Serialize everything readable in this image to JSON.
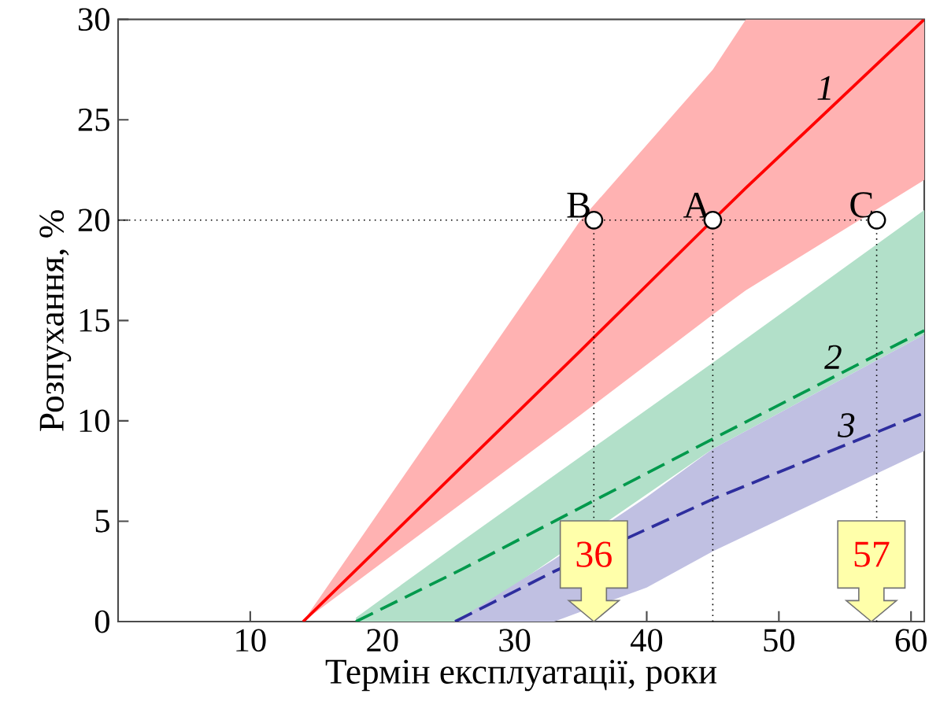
{
  "chart_data": {
    "type": "line",
    "xlabel": "Термін експлуатації, роки",
    "ylabel": "Розпухання, %",
    "xlim": [
      0,
      61
    ],
    "ylim": [
      0,
      30
    ],
    "xticks": [
      10,
      20,
      30,
      40,
      50,
      60
    ],
    "yticks": [
      0,
      5,
      10,
      15,
      20,
      25,
      30
    ],
    "series": [
      {
        "name": "1",
        "color": "#ff0000",
        "line_style": "solid",
        "marker": "none",
        "x": [
          14,
          35,
          45,
          47.5,
          61
        ],
        "values": [
          0,
          13.5,
          20,
          21.6,
          30
        ],
        "lower": [
          0,
          10.3,
          15.3,
          16.5,
          22
        ],
        "upper": [
          0,
          20,
          27.5,
          30,
          30
        ]
      },
      {
        "name": "2",
        "color": "#00994c",
        "line_style": "dashed",
        "marker": "none",
        "x": [
          18,
          26,
          45,
          61
        ],
        "values": [
          0,
          2.6,
          9.1,
          14.5
        ],
        "lower": [
          0,
          0,
          8.6,
          14.3
        ],
        "upper": [
          0.2,
          4,
          12.9,
          20.5
        ]
      },
      {
        "name": "3",
        "color": "#2e2e9e",
        "line_style": "dashed",
        "marker": "none",
        "x": [
          25.5,
          33,
          40,
          45,
          61
        ],
        "values": [
          0,
          2.5,
          4.6,
          6.1,
          10.4
        ],
        "lower": [
          0,
          0,
          1.7,
          3.5,
          8.5
        ],
        "upper": [
          0,
          3.1,
          6.2,
          8.6,
          14.3
        ]
      },
      {
        "color": "#000000",
        "line_style": "dotted",
        "marker": "none",
        "x": [
          0,
          57.4
        ],
        "values": [
          20,
          20
        ]
      },
      {
        "color": "#000000",
        "line_style": "dotted",
        "marker": "none",
        "x": [
          36,
          36
        ],
        "values": [
          0,
          20
        ]
      },
      {
        "color": "#000000",
        "line_style": "dotted",
        "marker": "none",
        "x": [
          45,
          45
        ],
        "values": [
          0,
          20
        ]
      },
      {
        "color": "#000000",
        "line_style": "dotted",
        "marker": "none",
        "x": [
          57.4,
          57.4
        ],
        "values": [
          0,
          20
        ]
      },
      {
        "type": "scatter",
        "color": "#000000",
        "marker": "circle",
        "x": [
          36,
          45,
          57.4
        ],
        "values": [
          20,
          20,
          20
        ],
        "value_labels": [
          "B",
          "A",
          "C"
        ]
      }
    ],
    "annotations": [
      {
        "text": "36",
        "x": 36
      },
      {
        "text": "57",
        "x": 57
      }
    ]
  }
}
